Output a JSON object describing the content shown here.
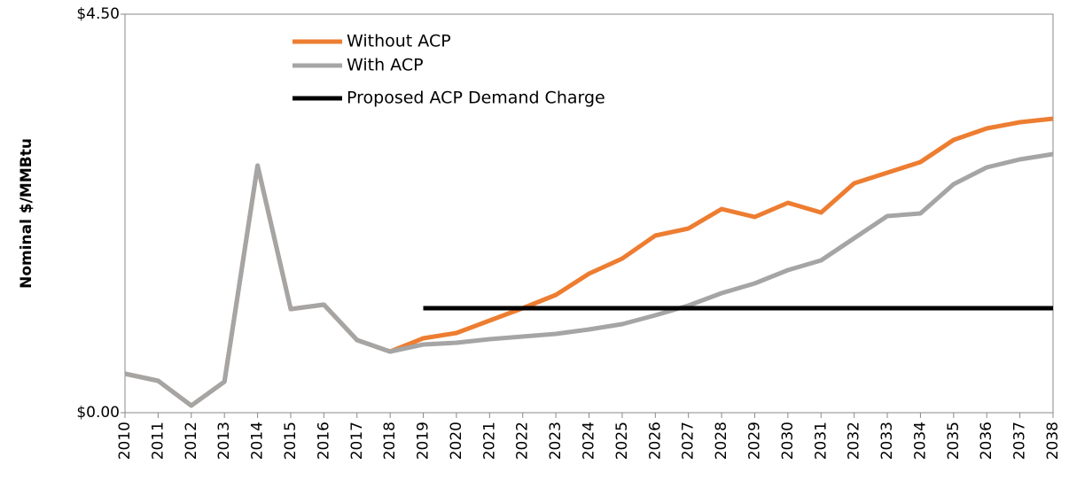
{
  "chart_data": {
    "type": "line",
    "y_label": "Nominal $/MMBtu",
    "categories": [
      "2010",
      "2011",
      "2012",
      "2013",
      "2014",
      "2015",
      "2016",
      "2017",
      "2018",
      "2019",
      "2020",
      "2021",
      "2022",
      "2023",
      "2024",
      "2025",
      "2026",
      "2027",
      "2028",
      "2029",
      "2030",
      "2031",
      "2032",
      "2033",
      "2034",
      "2035",
      "2036",
      "2037",
      "2038"
    ],
    "series": [
      {
        "name": "Without ACP",
        "color": "#ed7d31",
        "values": [
          0.44,
          0.36,
          0.08,
          0.35,
          2.79,
          1.17,
          1.22,
          0.82,
          0.69,
          0.84,
          0.9,
          1.04,
          1.18,
          1.33,
          1.57,
          1.74,
          2.0,
          2.08,
          2.3,
          2.21,
          2.37,
          2.26,
          2.59,
          2.71,
          2.83,
          3.08,
          3.21,
          3.28,
          3.32
        ]
      },
      {
        "name": "With ACP",
        "color": "#a5a5a5",
        "values": [
          0.44,
          0.36,
          0.08,
          0.35,
          2.79,
          1.17,
          1.22,
          0.82,
          0.69,
          0.77,
          0.79,
          0.83,
          0.86,
          0.89,
          0.94,
          1.0,
          1.1,
          1.21,
          1.35,
          1.46,
          1.61,
          1.72,
          1.97,
          2.22,
          2.25,
          2.58,
          2.77,
          2.86,
          2.92
        ]
      },
      {
        "name": "Proposed ACP Demand Charge",
        "color": "#000000",
        "values": [
          null,
          null,
          null,
          null,
          null,
          null,
          null,
          null,
          null,
          1.18,
          1.18,
          1.18,
          1.18,
          1.18,
          1.18,
          1.18,
          1.18,
          1.18,
          1.18,
          1.18,
          1.18,
          1.18,
          1.18,
          1.18,
          1.18,
          1.18,
          1.18,
          1.18,
          1.18
        ]
      }
    ],
    "ylim": [
      0,
      4.5
    ],
    "yticks": [
      {
        "value": 0,
        "label": "$0.00"
      },
      {
        "value": 4.5,
        "label": "$4.50"
      }
    ]
  }
}
